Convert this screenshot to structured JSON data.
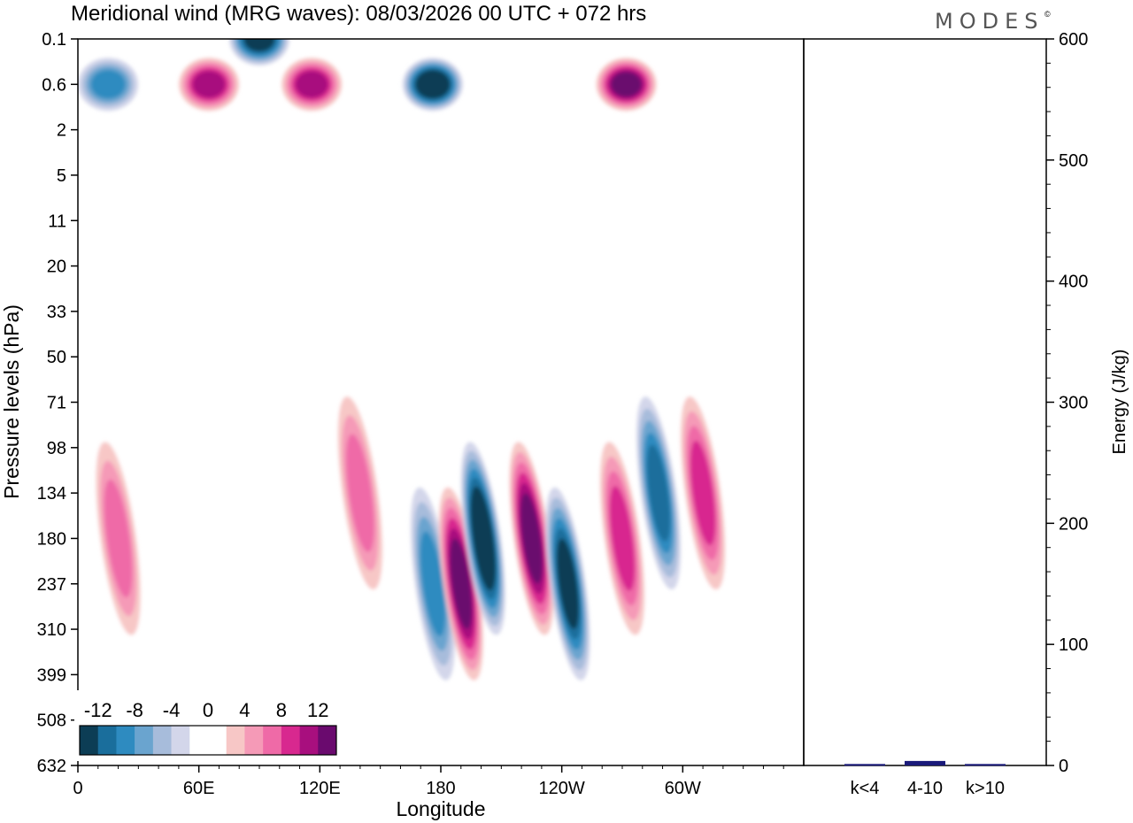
{
  "header": {
    "title": "Meridional wind (MRG waves):  08/03/2026  00 UTC  + 072 hrs",
    "logo": "MODES",
    "logo_mark": "©"
  },
  "chart_data": [
    {
      "type": "heatmap",
      "title": "Meridional wind (MRG waves)",
      "xlabel": "Longitude",
      "ylabel": "Pressure levels (hPa)",
      "xticks": [
        "0",
        "60E",
        "120E",
        "180",
        "120W",
        "60W"
      ],
      "yticks": [
        "0.1",
        "0.6",
        "2",
        "5",
        "11",
        "20",
        "33",
        "50",
        "71",
        "98",
        "134",
        "180",
        "237",
        "310",
        "399",
        "508",
        "632"
      ],
      "colorbar": {
        "tick_labels": [
          "-12",
          "-8",
          "-4",
          "0",
          "4",
          "8",
          "12"
        ],
        "levels": [
          -14,
          -12,
          -10,
          -8,
          -6,
          -4,
          -2,
          0,
          2,
          4,
          6,
          8,
          10,
          12,
          14
        ],
        "colors": [
          "#0c3d55",
          "#1a6e9c",
          "#2e8bc0",
          "#6aa4cf",
          "#a7bcdb",
          "#d3d6ea",
          "#ffffff",
          "#ffffff",
          "#f7c7c6",
          "#f59ab7",
          "#ef6aa7",
          "#d8288f",
          "#a80f7e",
          "#6a0a6e"
        ]
      },
      "features": [
        {
          "lon": 176,
          "level": 237,
          "value": -9
        },
        {
          "lon": 190,
          "level": 237,
          "value": 12
        },
        {
          "lon": 201,
          "level": 180,
          "value": -14
        },
        {
          "lon": 225,
          "level": 180,
          "value": 12
        },
        {
          "lon": 243,
          "level": 237,
          "value": -13
        },
        {
          "lon": 270,
          "level": 180,
          "value": 8
        },
        {
          "lon": 288,
          "level": 134,
          "value": -10
        },
        {
          "lon": 310,
          "level": 134,
          "value": 9
        },
        {
          "lon": 140,
          "level": 134,
          "value": 6
        },
        {
          "lon": 20,
          "level": 180,
          "value": 7
        },
        {
          "lon": 65,
          "level": 0.6,
          "value": 11
        },
        {
          "lon": 116,
          "level": 0.6,
          "value": 11
        },
        {
          "lon": 176,
          "level": 0.6,
          "value": -14
        },
        {
          "lon": 272,
          "level": 0.6,
          "value": 12
        },
        {
          "lon": 90,
          "level": 0.1,
          "value": -13
        },
        {
          "lon": 15,
          "level": 0.6,
          "value": -8
        }
      ]
    },
    {
      "type": "bar",
      "ylabel": "Energy (J/kg)",
      "categories": [
        "k<4",
        "4-10",
        "k>10"
      ],
      "values": [
        0.5,
        3,
        0.5
      ],
      "ylim": [
        0,
        600
      ],
      "yticks": [
        "0",
        "100",
        "200",
        "300",
        "400",
        "500",
        "600"
      ],
      "bar_color": "#1a1a7a"
    }
  ]
}
